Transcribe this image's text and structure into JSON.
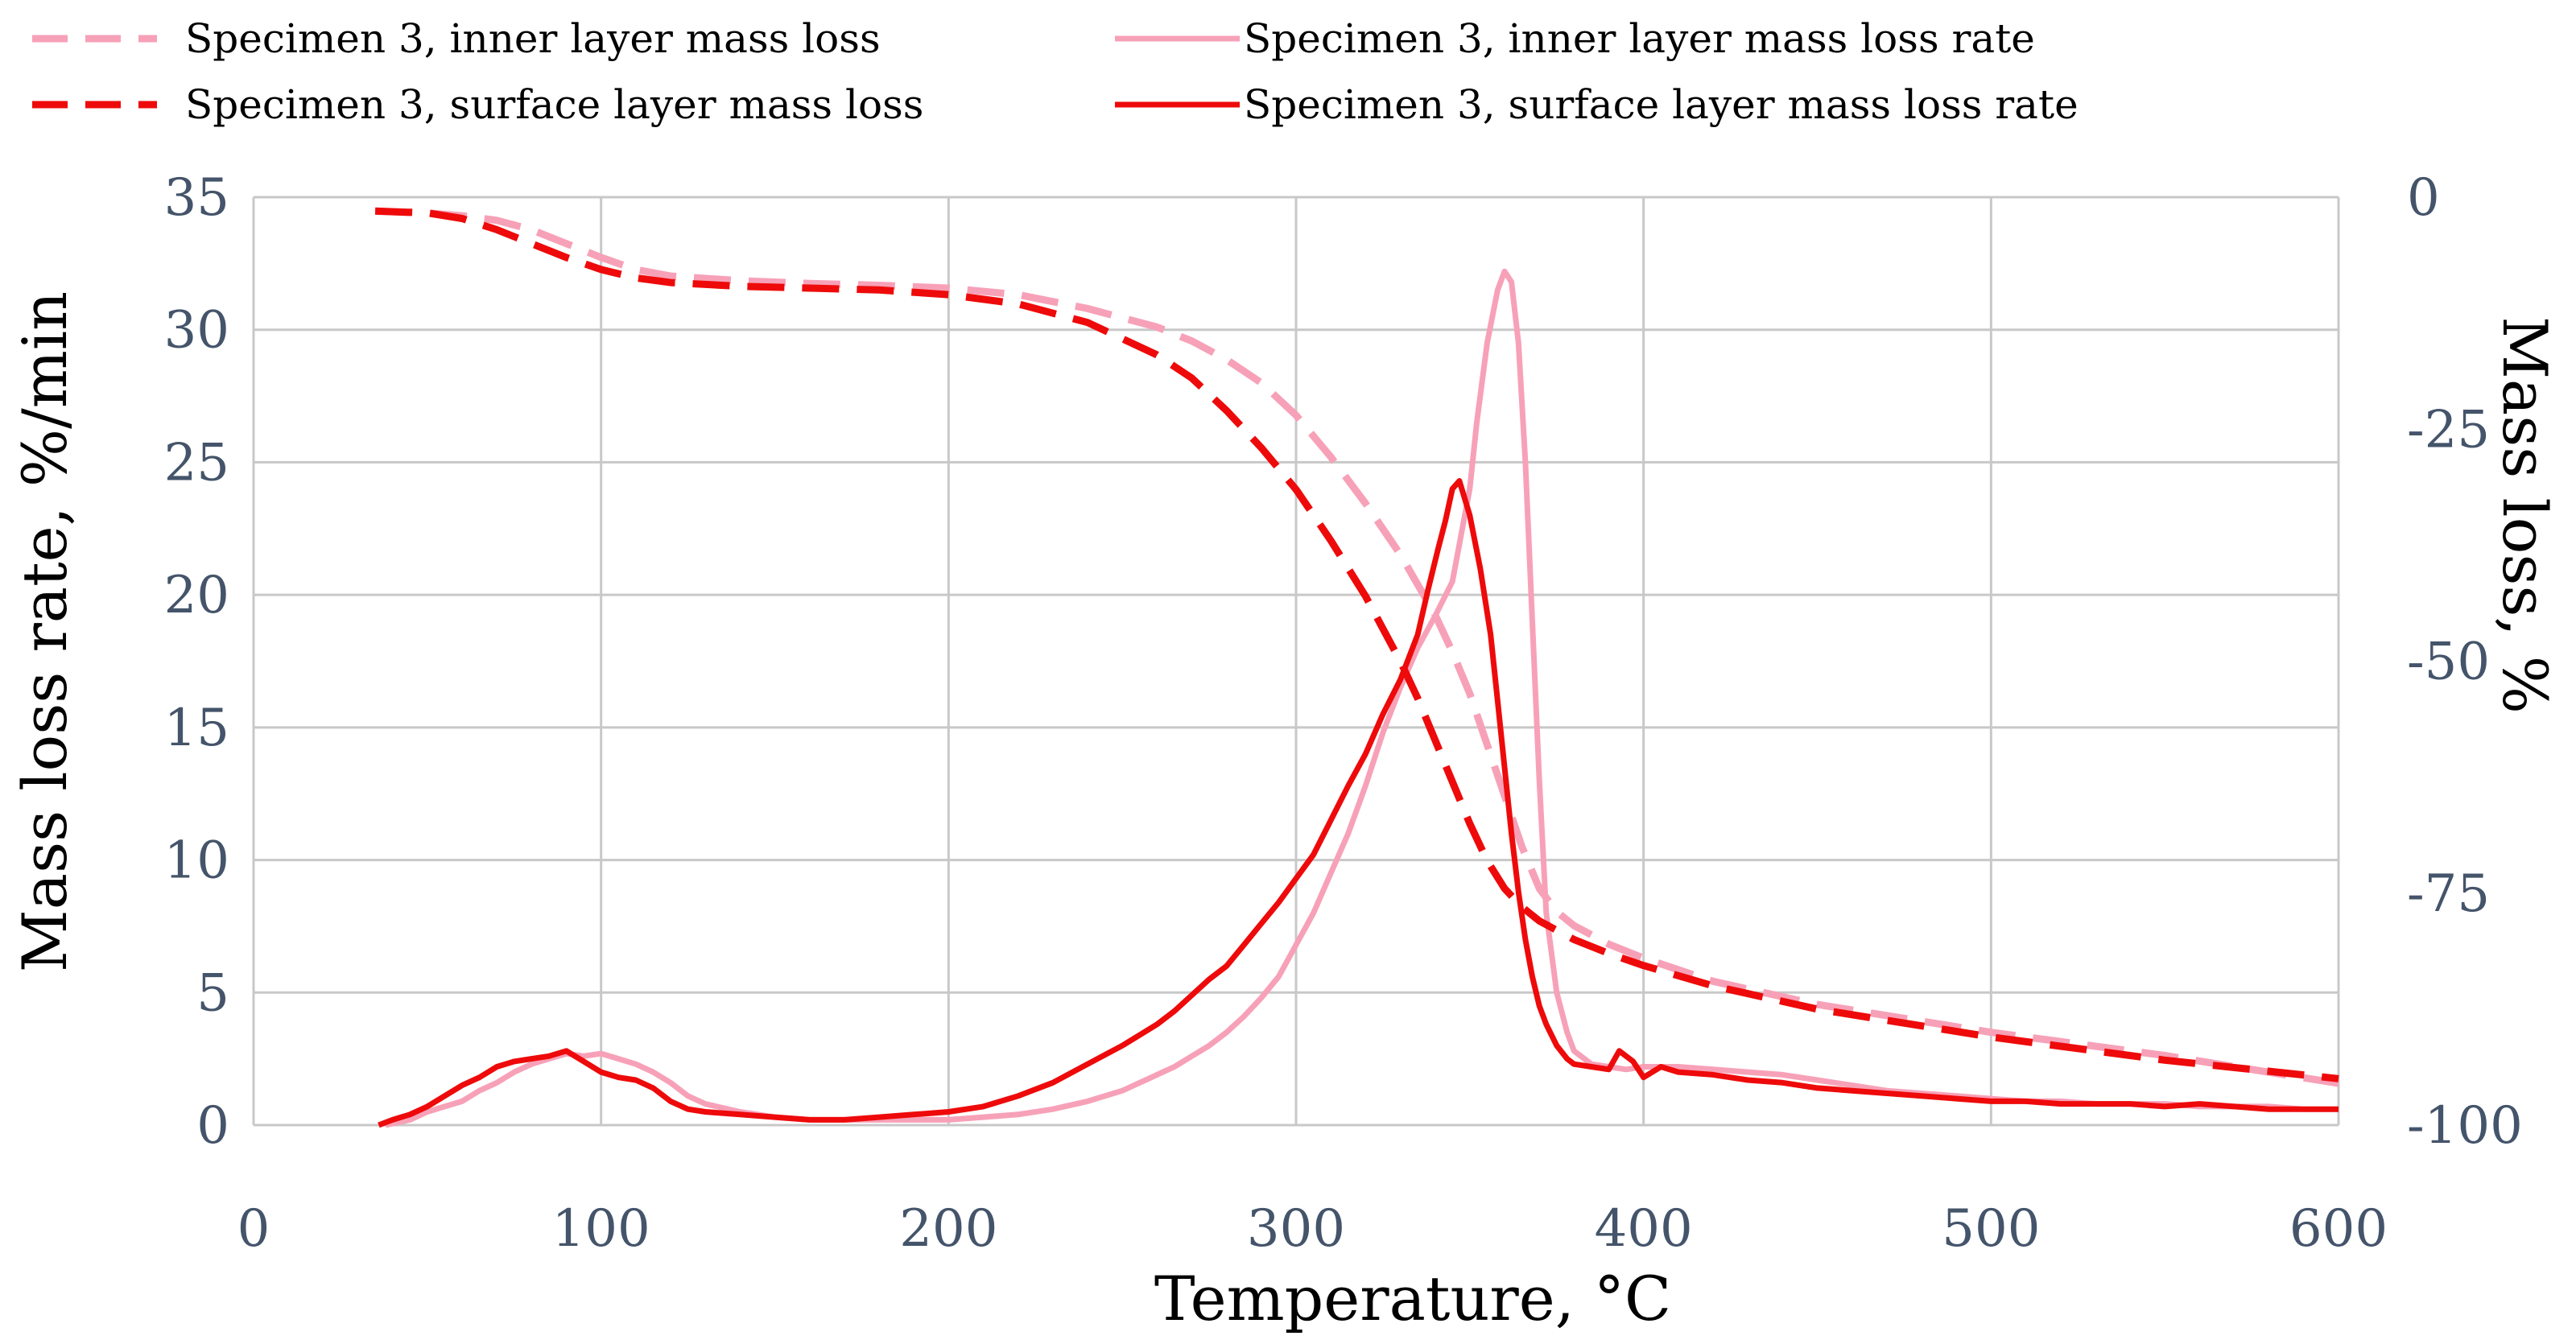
{
  "chart_data": {
    "type": "line",
    "title": "",
    "xlabel": "Temperature, °C",
    "ylabel_left": "Mass loss rate,  %/min",
    "ylabel_right": "Mass loss, %",
    "xlim": [
      0,
      600
    ],
    "ylim_left": [
      0,
      35
    ],
    "ylim_right": [
      -100,
      0
    ],
    "x_ticks": [
      "0",
      "100",
      "200",
      "300",
      "400",
      "500",
      "600"
    ],
    "y_ticks_left": [
      "0",
      "5",
      "10",
      "15",
      "20",
      "25",
      "30",
      "35"
    ],
    "y_ticks_right": [
      "-100",
      "-75",
      "-50",
      "-25",
      "0"
    ],
    "grid": true,
    "legend_position": "top",
    "colors": {
      "inner": "#f7a1b8",
      "surface": "#ee0a0a"
    },
    "series": [
      {
        "name": "Specimen 3, inner layer  mass loss",
        "axis": "right",
        "dash": true,
        "color_key": "inner",
        "x": [
          35,
          50,
          60,
          70,
          80,
          90,
          100,
          110,
          120,
          140,
          160,
          180,
          200,
          220,
          240,
          260,
          270,
          280,
          290,
          300,
          310,
          320,
          330,
          340,
          345,
          350,
          355,
          360,
          365,
          370,
          375,
          380,
          390,
          400,
          420,
          450,
          500,
          550,
          600
        ],
        "y": [
          -1.5,
          -1.7,
          -2.0,
          -2.5,
          -3.5,
          -5.0,
          -6.5,
          -7.8,
          -8.5,
          -9.0,
          -9.3,
          -9.5,
          -9.8,
          -10.5,
          -12.0,
          -14.0,
          -15.5,
          -17.5,
          -20.0,
          -23.5,
          -28.0,
          -33.0,
          -38.5,
          -45.0,
          -49.0,
          -53.5,
          -59.0,
          -64.5,
          -70.0,
          -74.5,
          -77.0,
          -78.5,
          -80.5,
          -82.0,
          -84.5,
          -87.0,
          -90.0,
          -92.5,
          -95.5
        ]
      },
      {
        "name": "Specimen 3, surface layer mass loss",
        "axis": "right",
        "dash": true,
        "color_key": "surface",
        "x": [
          35,
          50,
          60,
          70,
          80,
          90,
          100,
          110,
          120,
          140,
          160,
          180,
          200,
          220,
          240,
          260,
          270,
          280,
          290,
          300,
          310,
          320,
          330,
          335,
          340,
          345,
          350,
          355,
          360,
          365,
          370,
          375,
          380,
          390,
          400,
          420,
          450,
          500,
          550,
          600
        ],
        "y": [
          -1.5,
          -1.7,
          -2.3,
          -3.5,
          -5.0,
          -6.5,
          -7.8,
          -8.7,
          -9.2,
          -9.6,
          -9.8,
          -10.0,
          -10.5,
          -11.5,
          -13.5,
          -17.0,
          -19.5,
          -23.0,
          -27.0,
          -31.5,
          -37.0,
          -43.0,
          -50.0,
          -54.0,
          -58.5,
          -63.0,
          -67.5,
          -71.5,
          -74.5,
          -76.5,
          -78.0,
          -79.0,
          -80.0,
          -81.5,
          -82.8,
          -85.0,
          -87.5,
          -90.5,
          -93.0,
          -95.0
        ]
      },
      {
        "name": "Specimen 3, inner layer mass loss rate",
        "axis": "left",
        "dash": false,
        "color_key": "inner",
        "x": [
          38,
          45,
          50,
          55,
          60,
          65,
          70,
          75,
          80,
          85,
          90,
          95,
          100,
          105,
          110,
          115,
          120,
          125,
          130,
          140,
          150,
          160,
          170,
          180,
          190,
          200,
          210,
          220,
          230,
          240,
          250,
          255,
          260,
          265,
          270,
          275,
          280,
          285,
          290,
          295,
          300,
          305,
          310,
          315,
          320,
          325,
          330,
          335,
          340,
          345,
          350,
          352,
          355,
          358,
          360,
          362,
          364,
          366,
          368,
          370,
          372,
          375,
          378,
          380,
          385,
          390,
          395,
          400,
          410,
          420,
          430,
          440,
          450,
          460,
          470,
          480,
          490,
          500,
          510,
          520,
          530,
          540,
          550,
          560,
          570,
          580,
          590,
          600
        ],
        "y": [
          0.0,
          0.2,
          0.5,
          0.7,
          0.9,
          1.3,
          1.6,
          2.0,
          2.3,
          2.5,
          2.7,
          2.6,
          2.7,
          2.5,
          2.3,
          2.0,
          1.6,
          1.1,
          0.8,
          0.5,
          0.3,
          0.2,
          0.2,
          0.2,
          0.2,
          0.2,
          0.3,
          0.4,
          0.6,
          0.9,
          1.3,
          1.6,
          1.9,
          2.2,
          2.6,
          3.0,
          3.5,
          4.1,
          4.8,
          5.6,
          6.8,
          8.0,
          9.5,
          11.0,
          12.8,
          14.8,
          16.5,
          18.0,
          19.2,
          20.5,
          24.0,
          26.5,
          29.5,
          31.5,
          32.2,
          31.8,
          29.5,
          25.0,
          19.0,
          13.0,
          8.0,
          5.0,
          3.5,
          2.8,
          2.3,
          2.2,
          2.1,
          2.2,
          2.2,
          2.1,
          2.0,
          1.9,
          1.7,
          1.5,
          1.3,
          1.2,
          1.1,
          1.0,
          0.9,
          0.9,
          0.8,
          0.8,
          0.8,
          0.7,
          0.7,
          0.7,
          0.6,
          0.6
        ]
      },
      {
        "name": "Specimen 3, surface layer mass loss rate",
        "axis": "left",
        "dash": false,
        "color_key": "surface",
        "x": [
          36,
          40,
          45,
          50,
          55,
          60,
          65,
          70,
          75,
          80,
          85,
          90,
          95,
          100,
          105,
          110,
          115,
          120,
          125,
          130,
          140,
          150,
          160,
          170,
          180,
          190,
          200,
          210,
          220,
          230,
          240,
          250,
          255,
          260,
          265,
          270,
          275,
          280,
          285,
          290,
          295,
          300,
          305,
          310,
          315,
          320,
          325,
          330,
          335,
          338,
          341,
          343,
          345,
          347,
          350,
          353,
          356,
          358,
          360,
          362,
          364,
          366,
          368,
          370,
          372,
          375,
          378,
          380,
          385,
          390,
          393,
          397,
          400,
          405,
          410,
          420,
          430,
          440,
          450,
          460,
          470,
          480,
          490,
          500,
          510,
          520,
          530,
          540,
          550,
          560,
          570,
          580,
          590,
          600
        ],
        "y": [
          0.0,
          0.2,
          0.4,
          0.7,
          1.1,
          1.5,
          1.8,
          2.2,
          2.4,
          2.5,
          2.6,
          2.8,
          2.4,
          2.0,
          1.8,
          1.7,
          1.4,
          0.9,
          0.6,
          0.5,
          0.4,
          0.3,
          0.2,
          0.2,
          0.3,
          0.4,
          0.5,
          0.7,
          1.1,
          1.6,
          2.3,
          3.0,
          3.4,
          3.8,
          4.3,
          4.9,
          5.5,
          6.0,
          6.8,
          7.6,
          8.4,
          9.3,
          10.2,
          11.5,
          12.8,
          14.0,
          15.5,
          16.8,
          18.5,
          20.2,
          21.8,
          22.8,
          24.0,
          24.3,
          23.0,
          21.0,
          18.5,
          16.0,
          13.5,
          11.0,
          8.8,
          7.0,
          5.6,
          4.5,
          3.8,
          3.0,
          2.5,
          2.3,
          2.2,
          2.1,
          2.8,
          2.4,
          1.8,
          2.2,
          2.0,
          1.9,
          1.7,
          1.6,
          1.4,
          1.3,
          1.2,
          1.1,
          1.0,
          0.9,
          0.9,
          0.8,
          0.8,
          0.8,
          0.7,
          0.8,
          0.7,
          0.6,
          0.6,
          0.6
        ]
      }
    ]
  }
}
